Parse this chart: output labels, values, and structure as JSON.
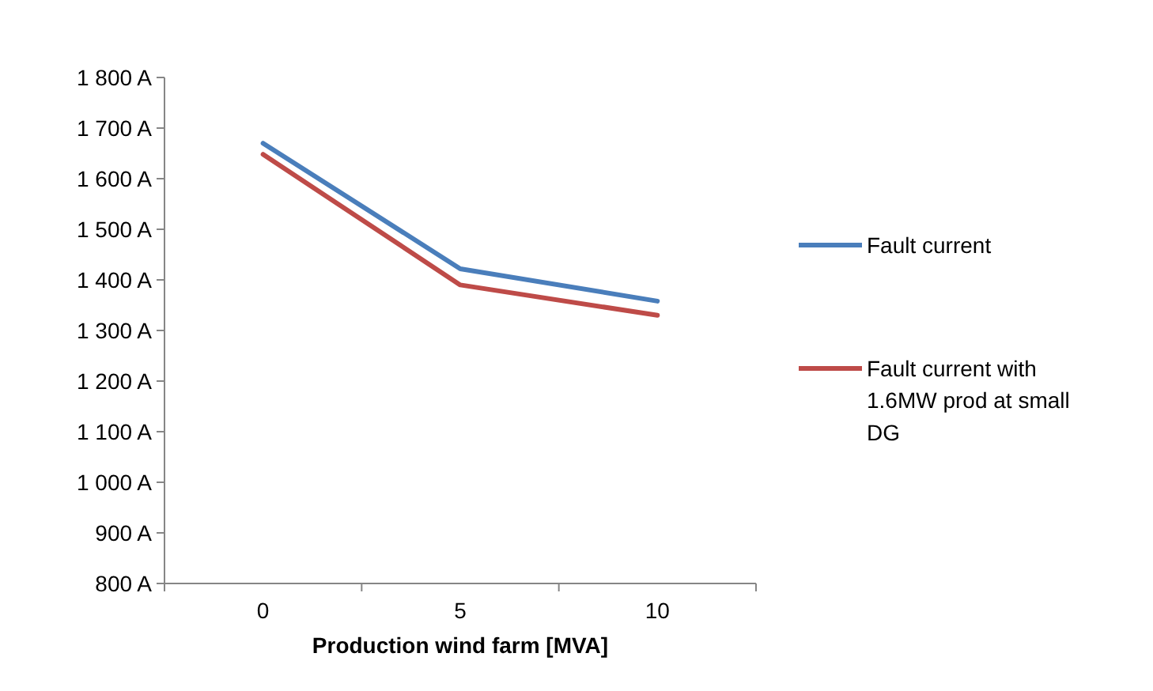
{
  "chart_data": {
    "type": "line",
    "xlabel": "Production wind farm [MVA]",
    "categories": [
      "0",
      "5",
      "10"
    ],
    "series": [
      {
        "name": "Fault current",
        "color": "#4a7ebb",
        "values": [
          1670,
          1422,
          1358
        ]
      },
      {
        "name": "Fault current with 1.6MW prod at small DG",
        "color": "#be4b48",
        "values": [
          1648,
          1390,
          1330
        ]
      }
    ],
    "ylim": [
      800,
      1800
    ],
    "yticks": [
      {
        "value": 800,
        "label": "800 A"
      },
      {
        "value": 900,
        "label": "900 A"
      },
      {
        "value": 1000,
        "label": "1 000 A"
      },
      {
        "value": 1100,
        "label": "1 100 A"
      },
      {
        "value": 1200,
        "label": "1 200 A"
      },
      {
        "value": 1300,
        "label": "1 300 A"
      },
      {
        "value": 1400,
        "label": "1 400 A"
      },
      {
        "value": 1500,
        "label": "1 500 A"
      },
      {
        "value": 1600,
        "label": "1 600 A"
      },
      {
        "value": 1700,
        "label": "1 700 A"
      },
      {
        "value": 1800,
        "label": "1 800 A"
      }
    ],
    "grid": false,
    "legend": "right",
    "marker": "none",
    "line_style": "solid"
  }
}
